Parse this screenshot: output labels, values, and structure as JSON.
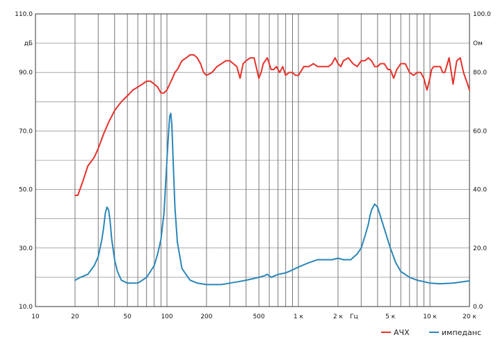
{
  "chart_data": {
    "type": "line",
    "x_scale": "log",
    "xlim": [
      10,
      20000
    ],
    "ylim": [
      10,
      110
    ],
    "y2lim": [
      0,
      100
    ],
    "grid": true,
    "x_ticks": [
      {
        "value": 10,
        "label": "10"
      },
      {
        "value": 20,
        "label": "20"
      },
      {
        "value": 50,
        "label": "50"
      },
      {
        "value": 100,
        "label": "100"
      },
      {
        "value": 200,
        "label": "200"
      },
      {
        "value": 500,
        "label": "500"
      },
      {
        "value": 1000,
        "label": "1 к"
      },
      {
        "value": 2000,
        "label": "2 к"
      },
      {
        "value": 5000,
        "label": "5 к"
      },
      {
        "value": 10000,
        "label": "10 к"
      },
      {
        "value": 20000,
        "label": "20 к"
      }
    ],
    "x_unit_label": "Гц",
    "y_ticks": [
      {
        "value": 110,
        "label": "110.0"
      },
      {
        "value": 100,
        "label": "дБ"
      },
      {
        "value": 90,
        "label": "90.0"
      },
      {
        "value": 70,
        "label": "70.0"
      },
      {
        "value": 50,
        "label": "50.0"
      },
      {
        "value": 30,
        "label": "30.0"
      },
      {
        "value": 10,
        "label": "10.0"
      }
    ],
    "y2_ticks": [
      {
        "value": 100,
        "label": "100.0"
      },
      {
        "value": 90,
        "label": "Ом"
      },
      {
        "value": 80,
        "label": "80.0"
      },
      {
        "value": 60,
        "label": "60.0"
      },
      {
        "value": 40,
        "label": "40.0"
      },
      {
        "value": 20,
        "label": "20.0"
      },
      {
        "value": 0,
        "label": "0.0"
      }
    ],
    "legend_position": "bottom-right",
    "series": [
      {
        "name": "АЧХ",
        "color": "#e8302a",
        "axis": "left",
        "x": [
          20,
          21,
          23,
          25,
          28,
          30,
          33,
          36,
          38,
          40,
          45,
          50,
          55,
          60,
          65,
          70,
          75,
          80,
          85,
          90,
          95,
          100,
          105,
          110,
          115,
          120,
          130,
          140,
          150,
          160,
          170,
          180,
          190,
          200,
          220,
          240,
          260,
          280,
          300,
          320,
          340,
          360,
          380,
          400,
          430,
          460,
          500,
          520,
          540,
          580,
          620,
          650,
          680,
          720,
          760,
          800,
          850,
          900,
          950,
          1000,
          1100,
          1200,
          1300,
          1400,
          1500,
          1600,
          1700,
          1800,
          1900,
          2000,
          2100,
          2200,
          2400,
          2600,
          2800,
          3000,
          3200,
          3400,
          3600,
          3800,
          4000,
          4200,
          4500,
          4800,
          5000,
          5300,
          5600,
          6000,
          6500,
          7000,
          7500,
          8000,
          8500,
          9000,
          9500,
          10000,
          10300,
          10700,
          11000,
          11500,
          12000,
          12500,
          13000,
          14000,
          15000,
          16000,
          17000,
          18000,
          19000,
          20000
        ],
        "y": [
          48,
          48,
          53,
          58,
          61,
          64,
          69,
          73,
          75,
          77,
          80,
          82,
          84,
          85,
          86,
          87,
          87,
          86,
          85,
          83,
          83,
          84,
          86,
          88,
          90,
          91,
          94,
          95,
          96,
          96,
          95,
          93,
          90,
          89,
          90,
          92,
          93,
          94,
          94,
          93,
          92,
          88,
          93,
          94,
          95,
          95,
          88,
          90,
          93,
          95,
          91,
          91,
          92,
          90,
          92,
          89,
          90,
          90,
          89,
          89,
          92,
          92,
          93,
          92,
          92,
          92,
          92,
          93,
          95,
          93,
          92,
          94,
          95,
          93,
          92,
          94,
          94,
          95,
          94,
          92,
          92,
          93,
          93,
          91,
          91,
          88,
          91,
          93,
          93,
          90,
          89,
          90,
          90,
          88,
          84,
          88,
          91,
          92,
          92,
          92,
          92,
          90,
          90,
          95,
          86,
          94,
          95,
          90,
          87,
          84
        ]
      },
      {
        "name": "импеданс",
        "color": "#2a86b8",
        "axis": "right",
        "x": [
          20,
          22,
          25,
          28,
          30,
          32,
          33,
          34,
          35,
          36,
          37,
          38,
          40,
          42,
          45,
          50,
          55,
          60,
          65,
          70,
          75,
          80,
          85,
          90,
          95,
          100,
          103,
          105,
          107,
          109,
          111,
          115,
          120,
          130,
          150,
          170,
          200,
          230,
          260,
          300,
          350,
          400,
          450,
          500,
          550,
          580,
          620,
          700,
          800,
          900,
          1000,
          1200,
          1400,
          1600,
          1800,
          2000,
          2200,
          2500,
          2800,
          3000,
          3200,
          3400,
          3500,
          3600,
          3800,
          4000,
          4400,
          5000,
          5500,
          6000,
          7000,
          8000,
          9000,
          10000,
          12000,
          15000,
          18000,
          20000
        ],
        "y": [
          9,
          10,
          11,
          14,
          17,
          23,
          27,
          32,
          34,
          33,
          29,
          23,
          16,
          12,
          9,
          8,
          8,
          8,
          9,
          10,
          12,
          14,
          18,
          23,
          32,
          50,
          60,
          65,
          66,
          62,
          52,
          34,
          22,
          13,
          9,
          8,
          7.5,
          7.5,
          7.5,
          8,
          8.5,
          9,
          9.5,
          10,
          10.5,
          11,
          10,
          11,
          11.5,
          12.5,
          13.5,
          15,
          16,
          16,
          16,
          16.5,
          16,
          16,
          18,
          20,
          24,
          28,
          31,
          33,
          35,
          34,
          28,
          20,
          15,
          12,
          10,
          9,
          8.5,
          8,
          7.8,
          8,
          8.5,
          8.8
        ]
      }
    ]
  }
}
